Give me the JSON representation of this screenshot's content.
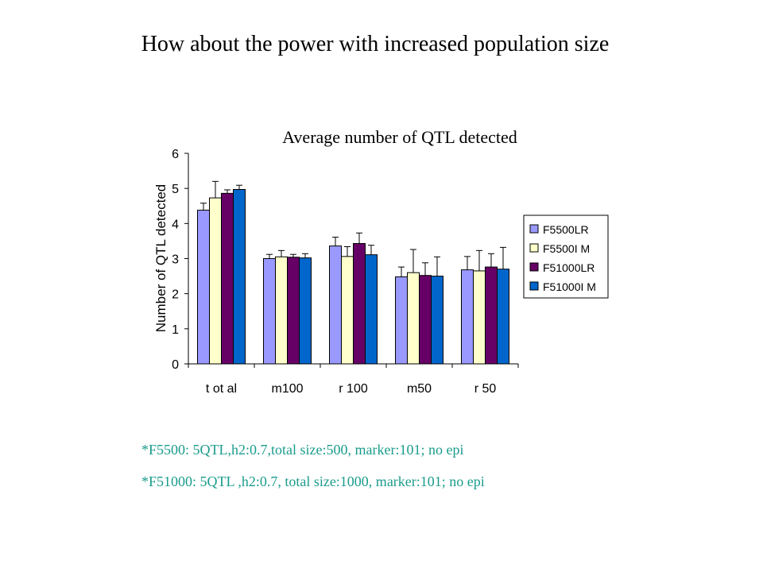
{
  "slide": {
    "title": "How about the power with increased population size",
    "notes": [
      "*F5500: 5QTL,h2:0.7,total size:500, marker:101; no epi",
      "*F51000: 5QTL ,h2:0.7, total size:1000, marker:101; no epi"
    ]
  },
  "chart_data": {
    "type": "bar",
    "title": "Average number of QTL detected",
    "ylabel": "Number of QTL detected",
    "xlabel": "",
    "ylim": [
      0,
      6
    ],
    "yticks": [
      "0",
      "1",
      "2",
      "3",
      "4",
      "5",
      "6"
    ],
    "categories": [
      "t ot al",
      "m100",
      "r 100",
      "m50",
      "r 50"
    ],
    "grid": false,
    "legend_position": "right",
    "series": [
      {
        "name": "F5500LR",
        "color": "#9999ff",
        "values": [
          4.38,
          3.0,
          3.36,
          2.48,
          2.68
        ],
        "errors": [
          0.2,
          0.12,
          0.25,
          0.28,
          0.38
        ]
      },
      {
        "name": "F5500I M",
        "color": "#ffffcc",
        "values": [
          4.73,
          3.05,
          3.06,
          2.6,
          2.65
        ],
        "errors": [
          0.47,
          0.18,
          0.28,
          0.66,
          0.58
        ]
      },
      {
        "name": "F51000LR",
        "color": "#660066",
        "values": [
          4.86,
          3.04,
          3.43,
          2.52,
          2.76
        ],
        "errors": [
          0.1,
          0.08,
          0.3,
          0.36,
          0.38
        ]
      },
      {
        "name": "F51000I M",
        "color": "#0066cc",
        "values": [
          4.97,
          3.02,
          3.11,
          2.5,
          2.7
        ],
        "errors": [
          0.12,
          0.12,
          0.27,
          0.55,
          0.62
        ]
      }
    ]
  }
}
